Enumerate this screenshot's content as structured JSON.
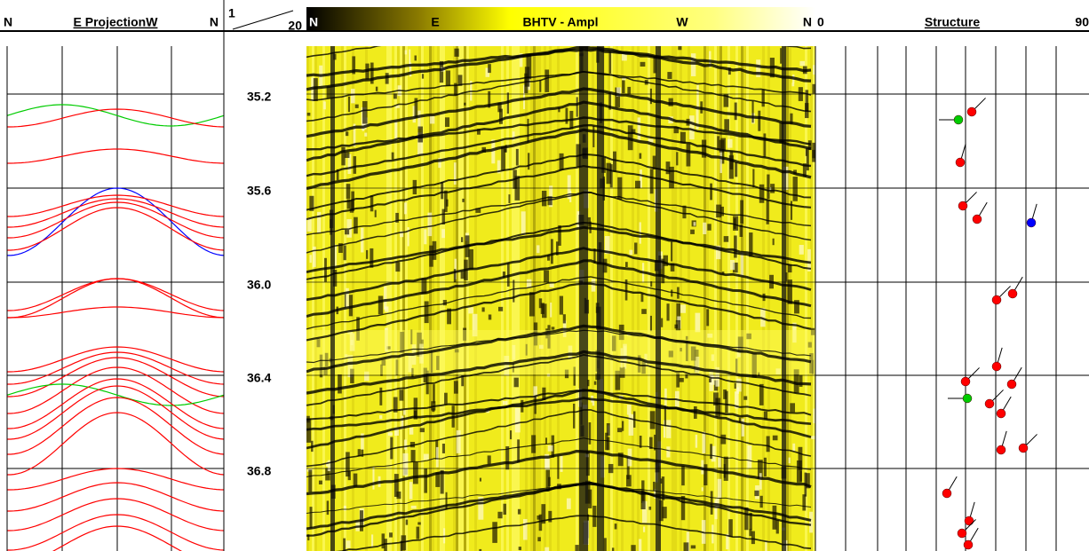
{
  "header": {
    "projection": {
      "left": "N",
      "title": "E ProjectionW",
      "right": "N"
    },
    "depth": {
      "left": "1",
      "right": "20"
    },
    "image": {
      "left": "N",
      "east": "E",
      "title": "BHTV - Ampl",
      "west": "W",
      "right": "N"
    },
    "structure": {
      "left": "0",
      "title": "Structure",
      "right": "90"
    }
  },
  "depth_labels": [
    "35.2",
    "35.6",
    "36.0",
    "36.4",
    "36.8"
  ]
}
